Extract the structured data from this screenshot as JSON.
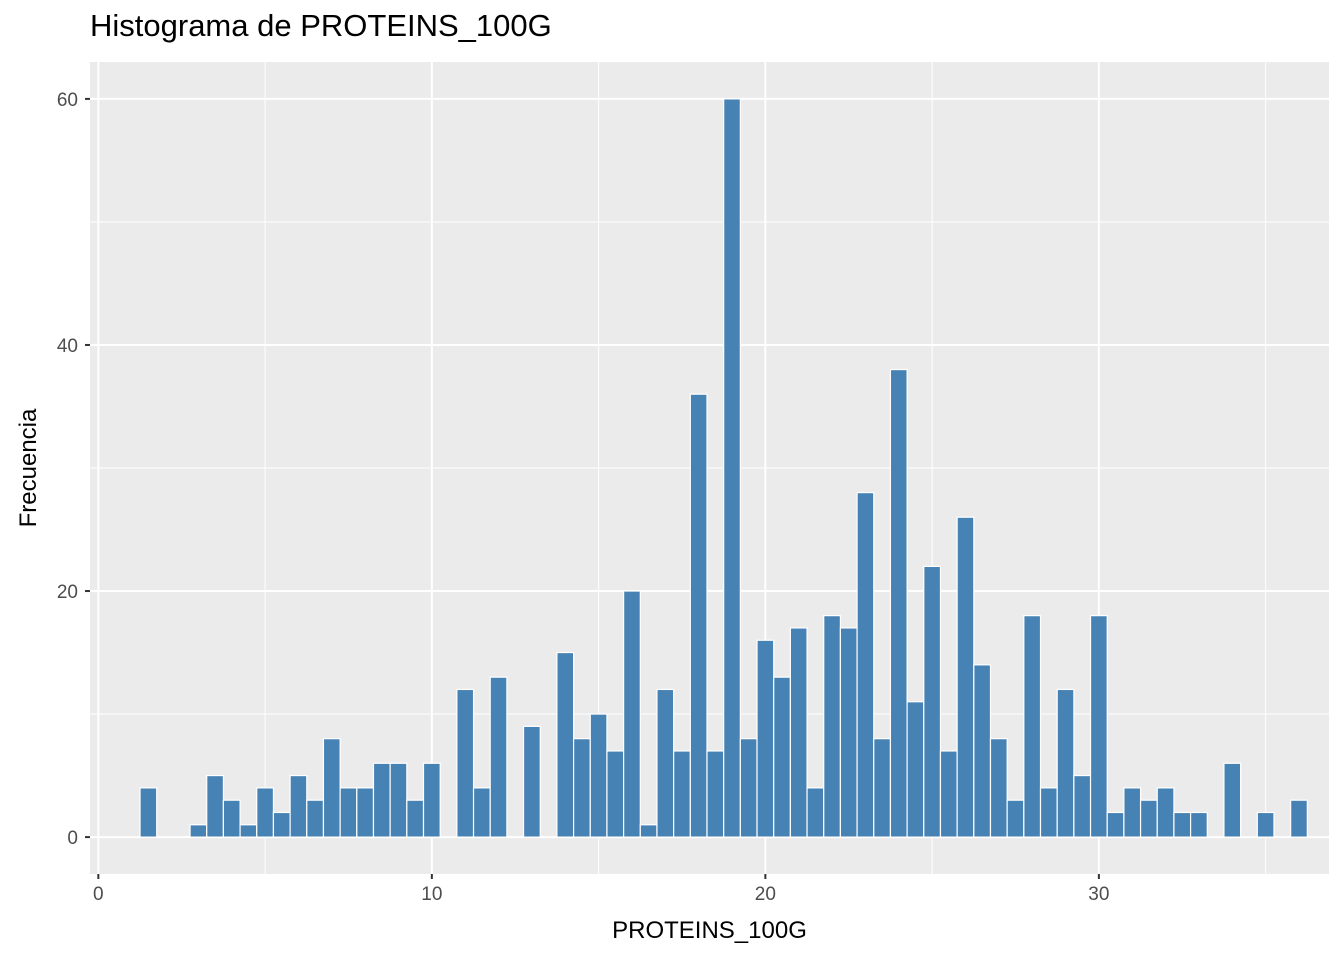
{
  "chart_data": {
    "type": "bar",
    "title": "Histograma de PROTEINS_100G",
    "xlabel": "PROTEINS_100G",
    "ylabel": "Frecuencia",
    "xlim": [
      -0.25,
      36.9
    ],
    "ylim": [
      -3,
      63
    ],
    "x_ticks": [
      0,
      10,
      20,
      30
    ],
    "y_ticks": [
      0,
      20,
      40,
      60
    ],
    "x_tick_labels": [
      "0",
      "10",
      "20",
      "30"
    ],
    "y_tick_labels": [
      "0",
      "20",
      "40",
      "60"
    ],
    "grid": true,
    "bin_width": 0.5,
    "bin_centers": [
      1.5,
      2.0,
      2.5,
      3.0,
      3.5,
      4.0,
      4.5,
      5.0,
      5.5,
      6.0,
      6.5,
      7.0,
      7.5,
      8.0,
      8.5,
      9.0,
      9.5,
      10.0,
      10.5,
      11.0,
      11.5,
      12.0,
      12.5,
      13.0,
      13.5,
      14.0,
      14.5,
      15.0,
      15.5,
      16.0,
      16.5,
      17.0,
      17.5,
      18.0,
      18.5,
      19.0,
      19.5,
      20.0,
      20.5,
      21.0,
      21.5,
      22.0,
      22.5,
      23.0,
      23.5,
      24.0,
      24.5,
      25.0,
      25.5,
      26.0,
      26.5,
      27.0,
      27.5,
      28.0,
      28.5,
      29.0,
      29.5,
      30.0,
      30.5,
      31.0,
      31.5,
      32.0,
      32.5,
      33.0,
      33.5,
      34.0,
      34.5,
      35.0,
      35.5,
      36.0
    ],
    "values": [
      4,
      0,
      0,
      1,
      5,
      3,
      1,
      4,
      2,
      5,
      3,
      8,
      4,
      4,
      6,
      6,
      3,
      6,
      0,
      12,
      4,
      13,
      0,
      9,
      0,
      15,
      8,
      10,
      7,
      20,
      1,
      12,
      7,
      36,
      7,
      60,
      8,
      16,
      13,
      17,
      4,
      18,
      17,
      28,
      8,
      38,
      11,
      22,
      7,
      26,
      14,
      8,
      3,
      18,
      4,
      12,
      5,
      18,
      2,
      4,
      3,
      4,
      2,
      2,
      0,
      6,
      0,
      2,
      0,
      3
    ],
    "colors": {
      "bar_fill": "#4682B4",
      "bar_outline": "#ffffff",
      "panel_background": "#EBEBEB",
      "grid": "#ffffff",
      "tick_text": "#4d4d4d",
      "tick_mark": "#333333"
    }
  }
}
